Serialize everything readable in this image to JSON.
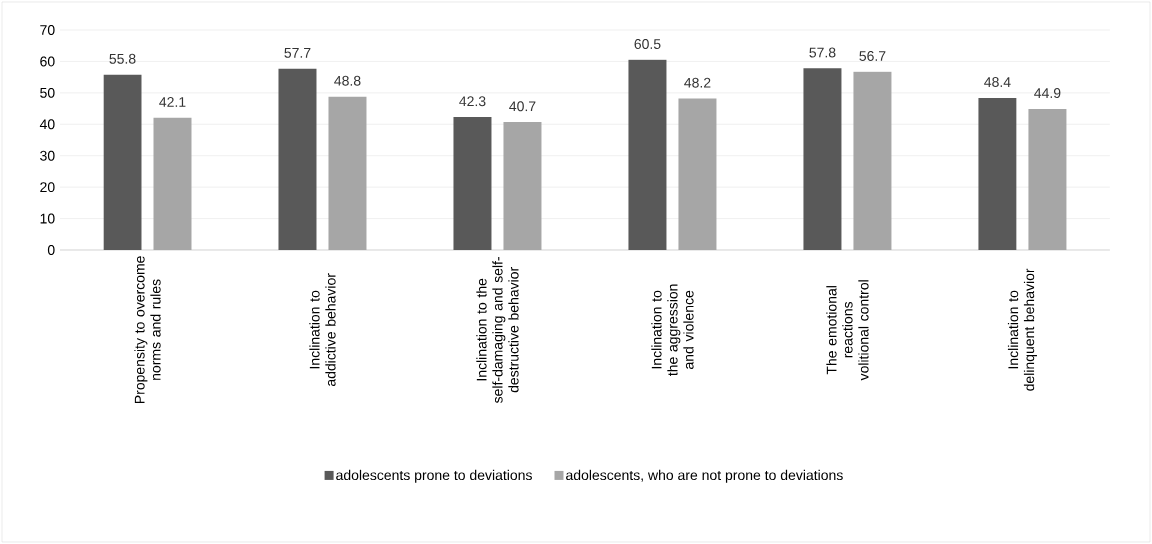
{
  "chart_data": {
    "type": "bar",
    "categories": [
      "Propensity to overcome norms and rules",
      "Inclination to addictive behavior",
      "Inclination to the self-damaging and self-destructive behavior",
      "Inclination to the aggression and violence",
      "The emotional reactions volitional control",
      "Inclination to delinquent behavior"
    ],
    "series": [
      {
        "name": "adolescents prone to deviations",
        "color": "#595959",
        "values": [
          55.8,
          57.7,
          42.3,
          60.5,
          57.8,
          48.4
        ]
      },
      {
        "name": "adolescents, who are not prone to deviations",
        "color": "#a6a6a6",
        "values": [
          42.1,
          48.8,
          40.7,
          48.2,
          56.7,
          44.9
        ]
      }
    ],
    "ylim": [
      0,
      70
    ],
    "yticks": [
      0,
      10,
      20,
      30,
      40,
      50,
      60,
      70
    ],
    "grid": "y",
    "legend": "bottom",
    "data_labels": true
  }
}
